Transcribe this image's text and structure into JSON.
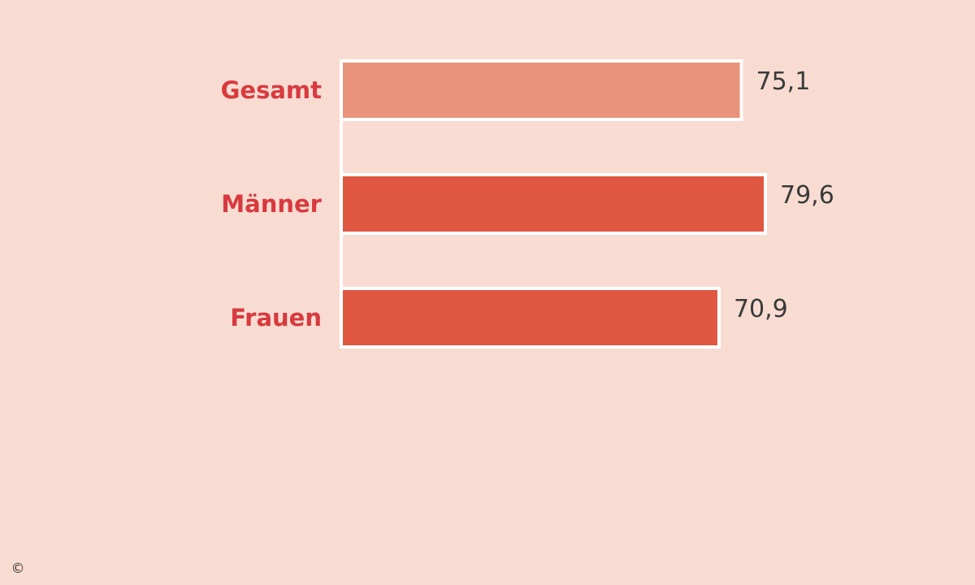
{
  "colors": {
    "background": "#f8dcd2",
    "label": "#d83a3e",
    "value": "#3a3a3a",
    "bar_border": "#ffffff",
    "bar_default": "#df5641",
    "bar_highlight": "#e9937b",
    "copyright": "#333333"
  },
  "chart_data": {
    "type": "bar",
    "orientation": "horizontal",
    "categories": [
      "Gesamt",
      "Männer",
      "Frauen"
    ],
    "values": [
      75.1,
      79.6,
      70.9
    ],
    "value_labels": [
      "75,1",
      "79,6",
      "70,9"
    ],
    "highlighted_category": "Gesamt",
    "title": "",
    "xlabel": "",
    "ylabel": "",
    "xlim": [
      0,
      79.6
    ],
    "grid": false,
    "legend": "none"
  },
  "footer": {
    "copyright_symbol": "©"
  }
}
